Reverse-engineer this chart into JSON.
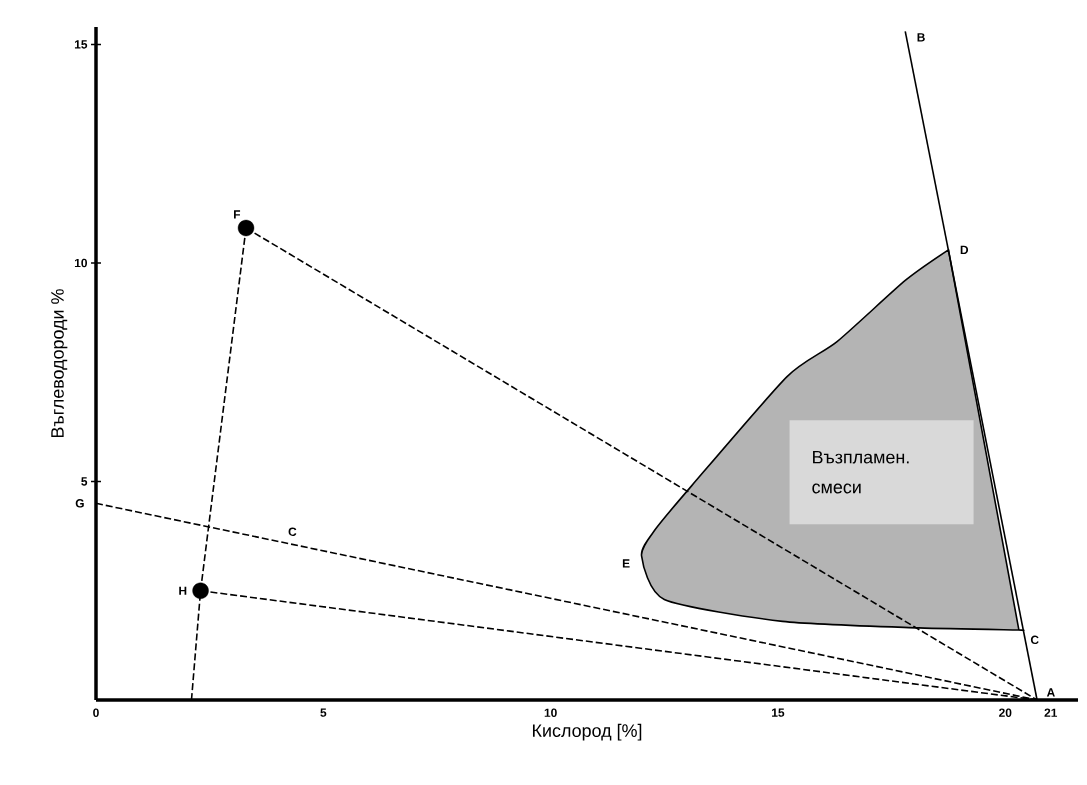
{
  "chart_data": {
    "type": "line",
    "xlabel": "Кислород [%]",
    "ylabel": "Въглеводороди %",
    "xlim": [
      0,
      21.6
    ],
    "ylim": [
      0,
      15.4
    ],
    "xticks": [
      0,
      5,
      10,
      15,
      20,
      21
    ],
    "yticks": [
      5,
      10,
      15
    ],
    "series": [
      {
        "name": "Възпламен. смеси",
        "type": "area",
        "color": "#b4b4b4",
        "x": [
          18.75,
          17.8,
          16.3,
          15.2,
          13.1,
          12.3,
          12.0,
          12.5,
          15.1,
          18.1,
          20.3,
          20.3
        ],
        "values": [
          10.3,
          9.6,
          8.2,
          7.4,
          4.9,
          3.9,
          3.3,
          2.3,
          1.8,
          1.65,
          1.6,
          1.6
        ]
      },
      {
        "color": "#000000",
        "line_style": "solid",
        "x": [
          17.8,
          20.7
        ],
        "values": [
          15.3,
          0
        ]
      },
      {
        "color": "#000000",
        "line_style": "dashed",
        "x": [
          3.3,
          2.3,
          2.1
        ],
        "values": [
          10.8,
          2.5,
          0
        ]
      },
      {
        "color": "#000000",
        "line_style": "dashed",
        "x": [
          3.3,
          20.7
        ],
        "values": [
          10.8,
          0
        ]
      },
      {
        "color": "#000000",
        "line_style": "dashed",
        "x": [
          0,
          20.7
        ],
        "values": [
          4.5,
          0
        ]
      },
      {
        "color": "#000000",
        "line_style": "dashed",
        "x": [
          2.3,
          20.7
        ],
        "values": [
          2.5,
          0
        ]
      },
      {
        "type": "scatter",
        "color": "#000000",
        "marker": "circle",
        "x": [
          3.3,
          2.3
        ],
        "values": [
          10.8,
          2.5
        ]
      }
    ],
    "annotations": [
      {
        "text": "A",
        "x": 20.7,
        "y": 0
      },
      {
        "text": "B",
        "x": 17.8,
        "y": 15.3
      },
      {
        "text": "C",
        "x": 20.3,
        "y": 1.6
      },
      {
        "text": "D",
        "x": 18.75,
        "y": 10.3
      },
      {
        "text": "E",
        "x": 12.0,
        "y": 3.3
      },
      {
        "text": "F",
        "x": 3.3,
        "y": 10.8
      },
      {
        "text": "G",
        "x": 0,
        "y": 4.5
      },
      {
        "text": "H",
        "x": 2.3,
        "y": 2.5
      },
      "C"
    ]
  }
}
